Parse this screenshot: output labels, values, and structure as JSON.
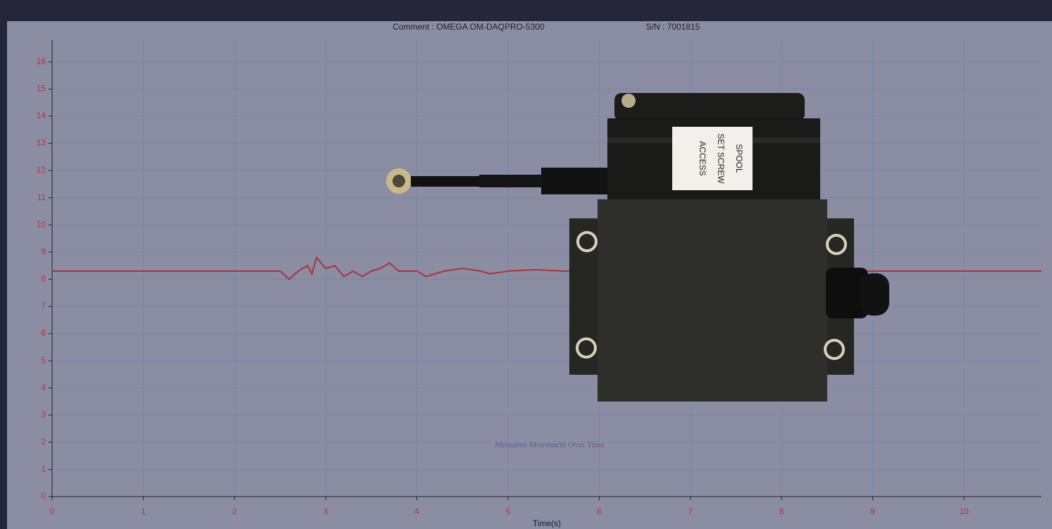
{
  "chart_data": {
    "type": "line",
    "title": "Comment : OMEGA OM-DAQPRO-5300",
    "subtitle": "S/N : 7001815",
    "xlabel": "Time(s)",
    "annotation": "Measures Movement Over Time",
    "device_labels": [
      "SPOOL",
      "SET SCREW",
      "ACCESS"
    ],
    "x": [
      0,
      2.5,
      2.6,
      2.7,
      2.8,
      2.85,
      2.9,
      3.0,
      3.1,
      3.2,
      3.3,
      3.4,
      3.5,
      3.6,
      3.7,
      3.8,
      4.0,
      4.1,
      4.3,
      4.5,
      4.7,
      4.8,
      5.0,
      5.3,
      5.6,
      8.5,
      10.85
    ],
    "values": [
      8.3,
      8.3,
      8.0,
      8.3,
      8.5,
      8.2,
      8.8,
      8.4,
      8.5,
      8.1,
      8.3,
      8.1,
      8.3,
      8.4,
      8.6,
      8.3,
      8.3,
      8.1,
      8.3,
      8.4,
      8.3,
      8.2,
      8.3,
      8.35,
      8.3,
      8.3,
      8.3
    ],
    "color": "#b0303a",
    "xlim": [
      0,
      10.85
    ],
    "ylim": [
      0,
      16.8
    ],
    "xticks": [
      0,
      1,
      2,
      3,
      4,
      5,
      6,
      7,
      8,
      9,
      10
    ],
    "yticks": [
      0,
      1,
      2,
      3,
      4,
      5,
      6,
      7,
      8,
      9,
      10,
      11,
      12,
      13,
      14,
      15,
      16
    ],
    "grid": true
  }
}
